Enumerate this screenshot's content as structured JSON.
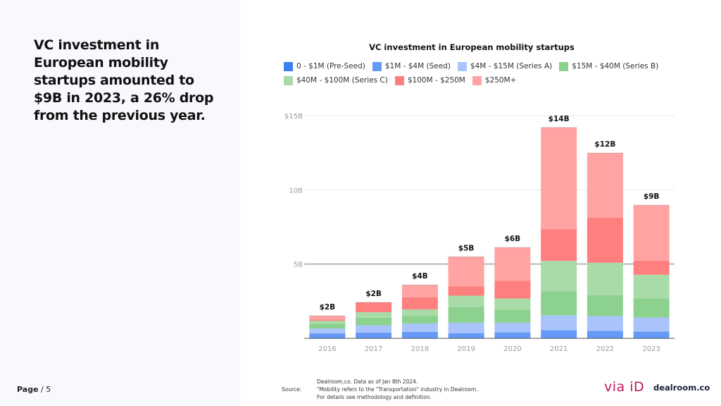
{
  "headline": "VC investment in European mobility startups amounted to $9B in 2023, a 26% drop from the previous year.",
  "footer": {
    "page_label_bold": "Page",
    "page_label_rest": " / 5",
    "source_label": "Source:",
    "source_lines": [
      "Dealroom.co.  Data as of Jan 8th 2024.",
      "\"Mobility refers to the \"Transportation\" industry in Dealroom.",
      "For details see methodology and definition."
    ],
    "logo_via": "via iD",
    "logo_dealroom": "dealroom.co"
  },
  "chart_data": {
    "type": "bar",
    "stacked": true,
    "title": "VC investment in European mobility startups",
    "xlabel": "",
    "ylabel": "",
    "ylim": [
      0,
      15
    ],
    "yticks": [
      {
        "value": 5,
        "label": "5B"
      },
      {
        "value": 10,
        "label": "10B"
      },
      {
        "value": 15,
        "label": "$15B"
      }
    ],
    "grid": true,
    "legend_position": "top",
    "categories": [
      "2016",
      "2017",
      "2018",
      "2019",
      "2020",
      "2021",
      "2022",
      "2023"
    ],
    "totals_labels": [
      "$2B",
      "$2B",
      "$4B",
      "$5B",
      "$6B",
      "$14B",
      "$12B",
      "$9B"
    ],
    "series": [
      {
        "name": "0 - $1M (Pre-Seed)",
        "color": "#3b7ff0",
        "values": [
          0.05,
          0.05,
          0.05,
          0.05,
          0.05,
          0.05,
          0.05,
          0.05
        ]
      },
      {
        "name": "$1M - $4M (Seed)",
        "color": "#6699f5",
        "values": [
          0.28,
          0.33,
          0.38,
          0.3,
          0.35,
          0.5,
          0.45,
          0.4
        ]
      },
      {
        "name": "$4M - $15M (Series A)",
        "color": "#a9c4fb",
        "values": [
          0.33,
          0.5,
          0.57,
          0.7,
          0.65,
          1.0,
          1.0,
          0.95
        ]
      },
      {
        "name": "$15M - $40M (Series B)",
        "color": "#8dd18f",
        "values": [
          0.33,
          0.5,
          0.52,
          1.06,
          0.87,
          1.62,
          1.41,
          1.28
        ]
      },
      {
        "name": "$40M - $100M (Series C)",
        "color": "#a8dba8",
        "values": [
          0.19,
          0.38,
          0.43,
          0.76,
          0.76,
          2.04,
          2.18,
          1.6
        ]
      },
      {
        "name": "$100M - $250M",
        "color": "#ff7f7f",
        "values": [
          0.09,
          0.66,
          0.81,
          0.62,
          1.19,
          2.14,
          3.04,
          0.95
        ]
      },
      {
        "name": "$250M+",
        "color": "#ffa3a3",
        "values": [
          0.25,
          0.0,
          0.84,
          2.0,
          2.25,
          6.85,
          4.35,
          3.74
        ]
      }
    ]
  }
}
